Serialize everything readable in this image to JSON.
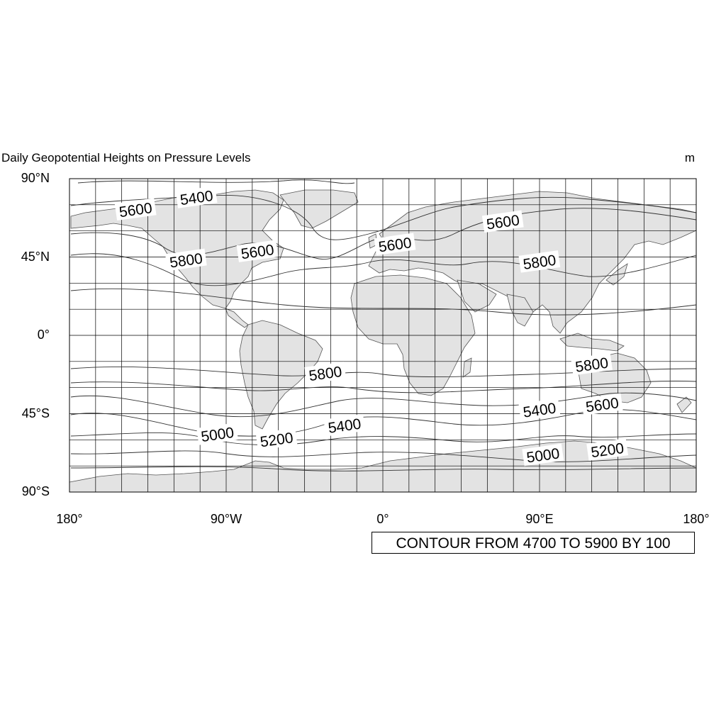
{
  "title": {
    "left": "Daily Geopotential Heights on Pressure Levels",
    "right": "m"
  },
  "lat_ticks": [
    "90°N",
    "45°N",
    "0°",
    "45°S",
    "90°S"
  ],
  "lon_ticks": [
    "180°",
    "90°W",
    "0°",
    "90°E",
    "180°"
  ],
  "info_label": "CONTOUR FROM 4700 TO 5900 BY 100",
  "colors": {
    "land": "#e3e3e3",
    "grid": "#000000",
    "contour": "#333333"
  },
  "map": {
    "projection": "cylindrical equidistant",
    "lon_range": [
      -180,
      180
    ],
    "lat_range": [
      -90,
      90
    ],
    "grid_spacing_deg": 15
  },
  "contour_labels": [
    {
      "text": "5400",
      "lon": -107,
      "lat": 79
    },
    {
      "text": "5600",
      "lon": -142,
      "lat": 72
    },
    {
      "text": "5800",
      "lon": -113,
      "lat": 43
    },
    {
      "text": "5600",
      "lon": -72,
      "lat": 48
    },
    {
      "text": "5600",
      "lon": 7,
      "lat": 52
    },
    {
      "text": "5600",
      "lon": 69,
      "lat": 65
    },
    {
      "text": "5800",
      "lon": 90,
      "lat": 42
    },
    {
      "text": "5800",
      "lon": -33,
      "lat": -22
    },
    {
      "text": "5800",
      "lon": 120,
      "lat": -17
    },
    {
      "text": "5400",
      "lon": -22,
      "lat": -52
    },
    {
      "text": "5400",
      "lon": 90,
      "lat": -43
    },
    {
      "text": "5600",
      "lon": 126,
      "lat": -40
    },
    {
      "text": "5000",
      "lon": -95,
      "lat": -57
    },
    {
      "text": "5200",
      "lon": -61,
      "lat": -60
    },
    {
      "text": "5000",
      "lon": 92,
      "lat": -69
    },
    {
      "text": "5200",
      "lon": 129,
      "lat": -66
    }
  ]
}
